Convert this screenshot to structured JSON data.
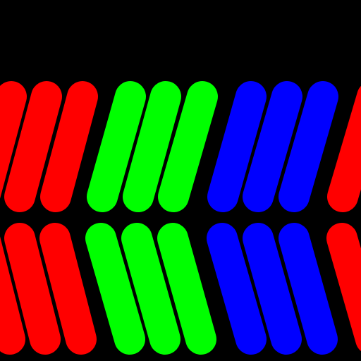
{
  "background_color": "#000000",
  "palette": {
    "red": "#ff0000",
    "green": "#00ff00",
    "blue": "#0000ff"
  },
  "pattern": {
    "description_free": true,
    "rows": [
      {
        "name": "top-row",
        "slant": "forward",
        "groups": [
          {
            "color": "red",
            "count": 3
          },
          {
            "color": "green",
            "count": 3
          },
          {
            "color": "blue",
            "count": 3
          },
          {
            "color": "red",
            "count": 1
          }
        ]
      },
      {
        "name": "bottom-row",
        "slant": "backward",
        "groups": [
          {
            "color": "red",
            "count": 3
          },
          {
            "color": "green",
            "count": 3
          },
          {
            "color": "blue",
            "count": 3
          },
          {
            "color": "red",
            "count": 1
          }
        ]
      }
    ]
  }
}
